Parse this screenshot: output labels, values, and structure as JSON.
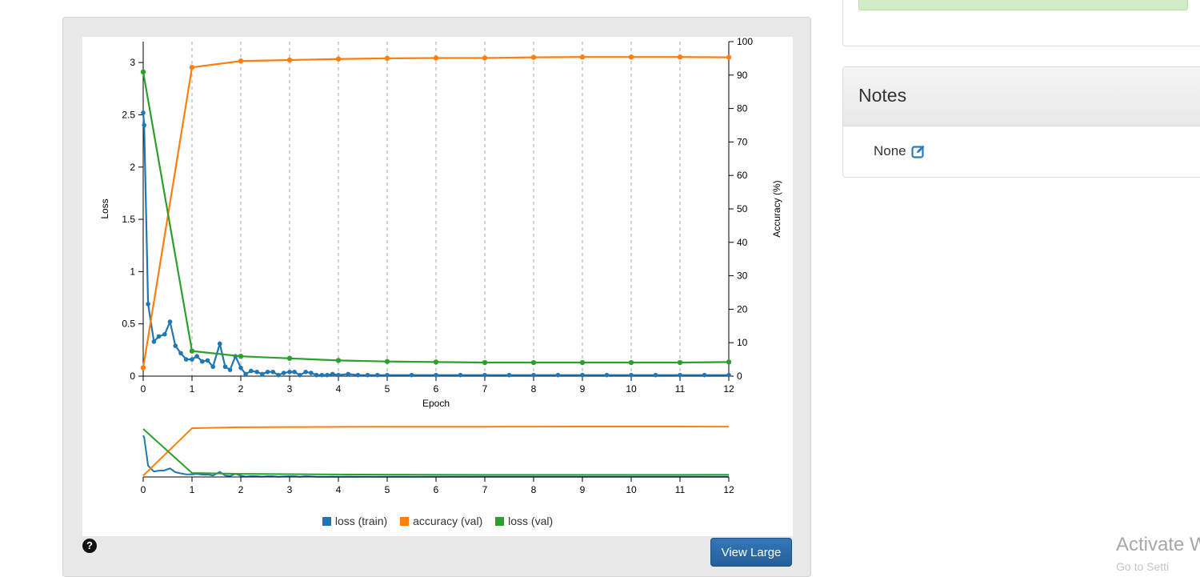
{
  "chart_data": {
    "type": "line",
    "xlabel": "Epoch",
    "y1label": "Loss",
    "y2label": "Accuracy (%)",
    "xlim": [
      0,
      12
    ],
    "y1lim": [
      0,
      3.2
    ],
    "y2lim": [
      0,
      100
    ],
    "x_ticks": [
      "0",
      "1",
      "2",
      "3",
      "4",
      "5",
      "6",
      "7",
      "8",
      "9",
      "10",
      "11",
      "12"
    ],
    "y1_ticks": [
      "0",
      "0.5",
      "1",
      "1.5",
      "2",
      "2.5",
      "3"
    ],
    "y2_ticks": [
      "0",
      "10",
      "20",
      "30",
      "40",
      "50",
      "60",
      "70",
      "80",
      "90",
      "100"
    ],
    "grid": "vertical dashed at each epoch",
    "series": [
      {
        "name": "loss (train)",
        "axis": "loss",
        "color": "#1f77b4",
        "x": [
          0,
          0.02,
          0.1,
          0.22,
          0.32,
          0.44,
          0.55,
          0.66,
          0.77,
          0.88,
          1.0,
          1.1,
          1.21,
          1.32,
          1.43,
          1.57,
          1.68,
          1.78,
          1.89,
          2.0,
          2.1,
          2.21,
          2.33,
          2.44,
          2.55,
          2.66,
          2.77,
          2.88,
          3.0,
          3.1,
          3.21,
          3.33,
          3.44,
          3.55,
          3.66,
          3.77,
          3.88,
          4.0,
          4.2,
          4.4,
          4.6,
          4.8,
          5.0,
          5.5,
          6.0,
          6.5,
          7.0,
          7.5,
          8.0,
          8.5,
          9.0,
          9.5,
          10.0,
          10.5,
          11.0,
          11.5,
          12.0
        ],
        "y": [
          2.52,
          2.4,
          0.69,
          0.33,
          0.38,
          0.4,
          0.52,
          0.29,
          0.22,
          0.16,
          0.16,
          0.19,
          0.14,
          0.15,
          0.09,
          0.31,
          0.09,
          0.06,
          0.19,
          0.08,
          0.02,
          0.05,
          0.04,
          0.02,
          0.04,
          0.04,
          0.01,
          0.03,
          0.04,
          0.04,
          0.01,
          0.04,
          0.03,
          0.01,
          0.01,
          0.01,
          0.02,
          0.01,
          0.02,
          0.01,
          0.01,
          0.01,
          0.01,
          0.01,
          0.01,
          0.01,
          0.01,
          0.01,
          0.01,
          0.01,
          0.01,
          0.01,
          0.01,
          0.01,
          0.01,
          0.01,
          0.01
        ]
      },
      {
        "name": "accuracy (val)",
        "axis": "accuracy",
        "color": "#ff7f0e",
        "x": [
          0,
          1,
          2,
          3,
          4,
          5,
          6,
          7,
          8,
          9,
          10,
          11,
          12
        ],
        "y": [
          2.5,
          92.3,
          94.2,
          94.5,
          94.8,
          95.0,
          95.1,
          95.1,
          95.3,
          95.4,
          95.4,
          95.4,
          95.3
        ]
      },
      {
        "name": "loss (val)",
        "axis": "loss",
        "color": "#2ca02c",
        "x": [
          0,
          1,
          2,
          3,
          4,
          5,
          6,
          7,
          8,
          9,
          10,
          11,
          12
        ],
        "y": [
          2.91,
          0.24,
          0.19,
          0.17,
          0.15,
          0.14,
          0.135,
          0.13,
          0.13,
          0.13,
          0.13,
          0.13,
          0.135
        ]
      }
    ]
  },
  "buttons": {
    "view_large": "View Large",
    "help": "?"
  },
  "notes": {
    "title": "Notes",
    "value": "None"
  },
  "icons": {
    "help": "question-circle-icon",
    "edit": "edit-icon"
  },
  "watermark": {
    "line1": "Activate W",
    "line2": "Go to Setti"
  }
}
